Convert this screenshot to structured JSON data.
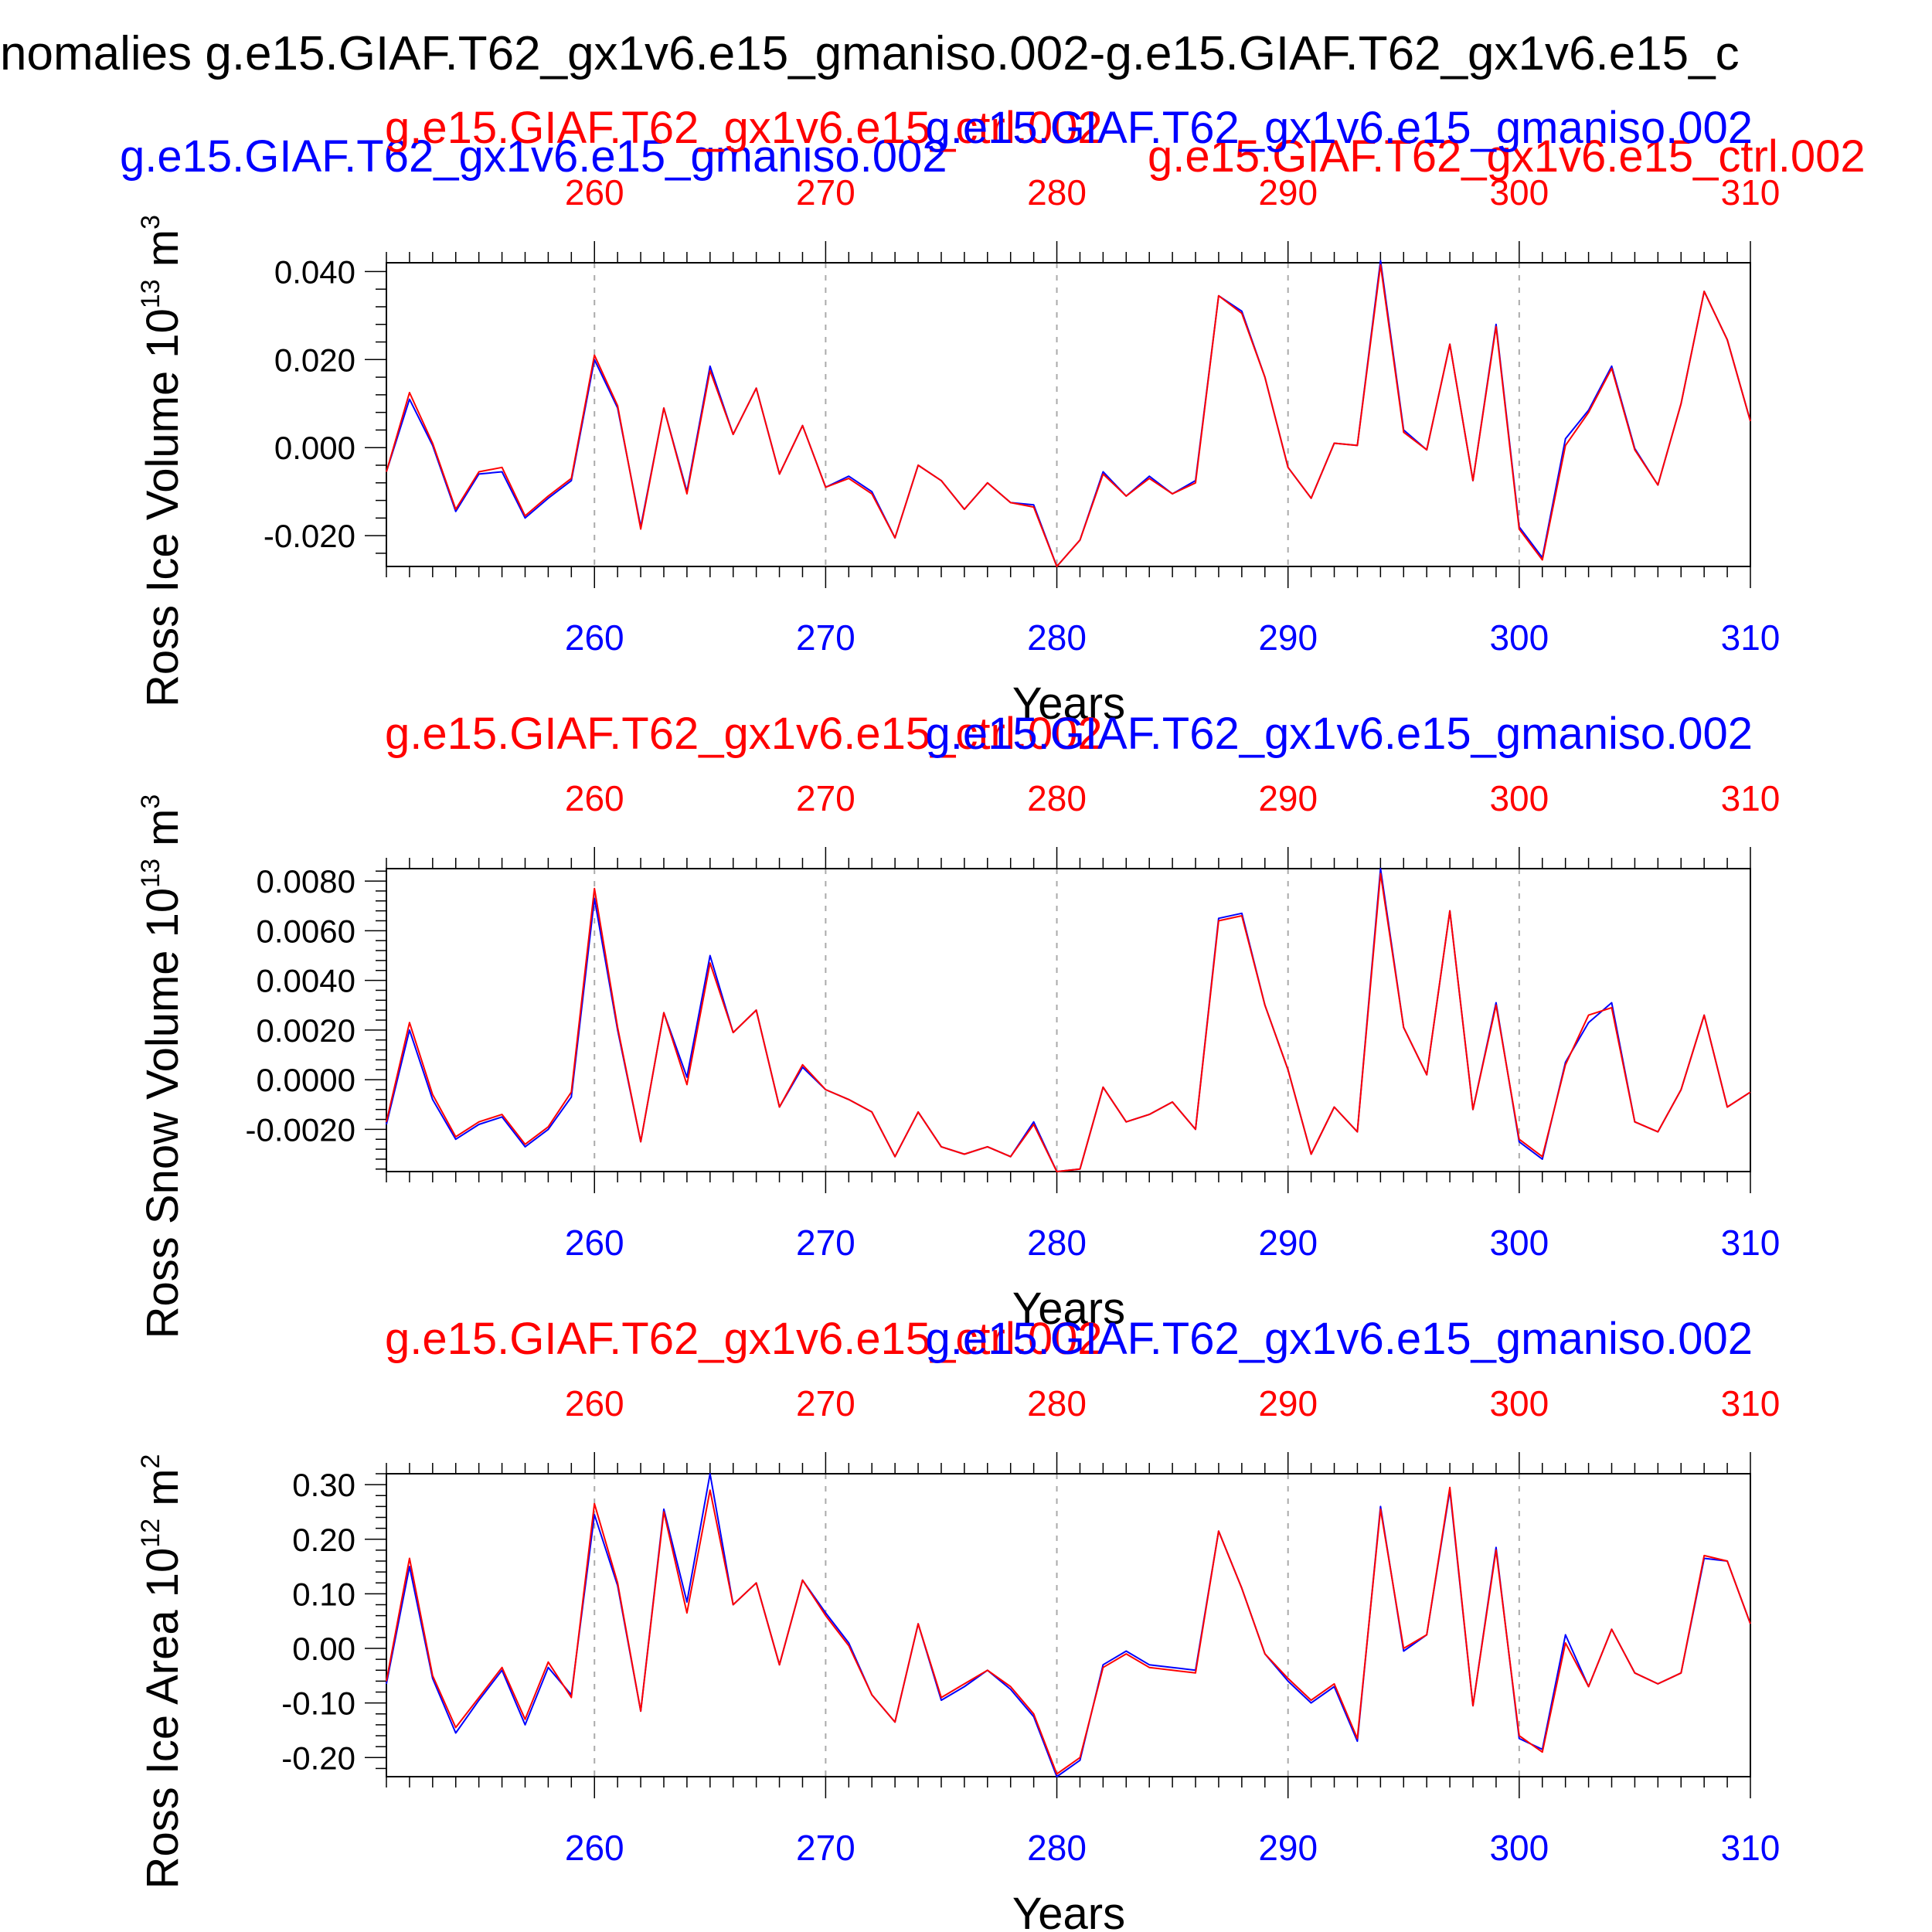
{
  "page_title": "nomalies g.e15.GIAF.T62_gx1v6.e15_gmaniso.002-g.e15.GIAF.T62_gx1v6.e15_c",
  "top_legend": {
    "blue": "g.e15.GIAF.T62_gx1v6.e15_gmaniso.002",
    "red": "g.e15.GIAF.T62_gx1v6.e15_ctrl.002"
  },
  "colors": {
    "blue": "#0000ff",
    "red": "#ff0000",
    "axis": "#000000",
    "grid": "#aaaaaa"
  },
  "chart_data": [
    {
      "type": "line",
      "ylabel_base": "Ross Ice Volume 10",
      "ylabel_exp1": "13",
      "ylabel_unit": " m",
      "ylabel_exp2": "3",
      "xlabel": "Years",
      "top_label_red": "g.e15.GIAF.T62_gx1v6.e15_ctrl.002",
      "top_label_blue": "g.e15.GIAF.T62_gx1v6.e15_gmaniso.002",
      "xlim": [
        251,
        310
      ],
      "ylim": [
        -0.027,
        0.042
      ],
      "x_ticks": [
        260,
        270,
        280,
        290,
        300,
        310
      ],
      "y_ticks": [
        -0.02,
        0.0,
        0.02,
        0.04
      ],
      "y_tick_labels": [
        "-0.020",
        "0.000",
        "0.020",
        "0.040"
      ],
      "x": [
        251,
        252,
        253,
        254,
        255,
        256,
        257,
        258,
        259,
        260,
        261,
        262,
        263,
        264,
        265,
        266,
        267,
        268,
        269,
        270,
        271,
        272,
        273,
        274,
        275,
        276,
        277,
        278,
        279,
        280,
        281,
        282,
        283,
        284,
        285,
        286,
        287,
        288,
        289,
        290,
        291,
        292,
        293,
        294,
        295,
        296,
        297,
        298,
        299,
        300,
        301,
        302,
        303,
        304,
        305,
        306,
        307,
        308,
        309,
        310
      ],
      "series": [
        {
          "name": "g.e15.GIAF.T62_gx1v6.e15_gmaniso.002",
          "color": "#0000ff",
          "values": [
            -0.0055,
            0.011,
            0.0005,
            -0.0145,
            -0.006,
            -0.0055,
            -0.016,
            -0.0115,
            -0.0075,
            0.02,
            0.009,
            -0.018,
            0.009,
            -0.01,
            0.0185,
            0.003,
            0.0135,
            -0.006,
            0.005,
            -0.009,
            -0.0065,
            -0.01,
            -0.0205,
            -0.004,
            -0.0075,
            -0.014,
            -0.008,
            -0.0125,
            -0.013,
            -0.027,
            -0.021,
            -0.0055,
            -0.011,
            -0.0065,
            -0.0105,
            -0.0075,
            0.0345,
            0.031,
            0.016,
            -0.0045,
            -0.0115,
            0.001,
            0.0005,
            0.0425,
            0.004,
            -0.0005,
            0.0235,
            -0.0075,
            0.028,
            -0.018,
            -0.025,
            0.002,
            0.0085,
            0.0185,
            -0.0002,
            -0.0085,
            0.01,
            0.0355,
            0.0245,
            0.006
          ]
        },
        {
          "name": "g.e15.GIAF.T62_gx1v6.e15_ctrl.002",
          "color": "#ff0000",
          "values": [
            -0.0055,
            0.0125,
            0.001,
            -0.014,
            -0.0055,
            -0.0045,
            -0.0155,
            -0.011,
            -0.007,
            0.021,
            0.0095,
            -0.0185,
            0.009,
            -0.0105,
            0.0175,
            0.003,
            0.0135,
            -0.006,
            0.005,
            -0.009,
            -0.007,
            -0.0105,
            -0.0205,
            -0.004,
            -0.0075,
            -0.014,
            -0.008,
            -0.0125,
            -0.0135,
            -0.027,
            -0.021,
            -0.006,
            -0.011,
            -0.007,
            -0.0105,
            -0.008,
            0.0345,
            0.0305,
            0.016,
            -0.0045,
            -0.0115,
            0.001,
            0.0005,
            0.0415,
            0.0035,
            -0.0005,
            0.0235,
            -0.0075,
            0.0275,
            -0.0185,
            -0.0255,
            0.0005,
            0.008,
            0.018,
            -0.0005,
            -0.0085,
            0.01,
            0.0355,
            0.0245,
            0.006
          ]
        }
      ]
    },
    {
      "type": "line",
      "ylabel_base": "Ross Snow Volume 10",
      "ylabel_exp1": "13",
      "ylabel_unit": " m",
      "ylabel_exp2": "3",
      "xlabel": "Years",
      "top_label_red": "g.e15.GIAF.T62_gx1v6.e15_ctrl.002",
      "top_label_blue": "g.e15.GIAF.T62_gx1v6.e15_gmaniso.002",
      "xlim": [
        251,
        310
      ],
      "ylim": [
        -0.0037,
        0.0085
      ],
      "x_ticks": [
        260,
        270,
        280,
        290,
        300,
        310
      ],
      "y_ticks": [
        -0.002,
        0.0,
        0.002,
        0.004,
        0.006,
        0.008
      ],
      "y_tick_labels": [
        "-0.0020",
        "0.0000",
        "0.0020",
        "0.0040",
        "0.0060",
        "0.0080"
      ],
      "x": [
        251,
        252,
        253,
        254,
        255,
        256,
        257,
        258,
        259,
        260,
        261,
        262,
        263,
        264,
        265,
        266,
        267,
        268,
        269,
        270,
        271,
        272,
        273,
        274,
        275,
        276,
        277,
        278,
        279,
        280,
        281,
        282,
        283,
        284,
        285,
        286,
        287,
        288,
        289,
        290,
        291,
        292,
        293,
        294,
        295,
        296,
        297,
        298,
        299,
        300,
        301,
        302,
        303,
        304,
        305,
        306,
        307,
        308,
        309,
        310
      ],
      "series": [
        {
          "name": "g.e15.GIAF.T62_gx1v6.e15_gmaniso.002",
          "color": "#0000ff",
          "values": [
            -0.0018,
            0.002,
            -0.0008,
            -0.0024,
            -0.0018,
            -0.0015,
            -0.0027,
            -0.002,
            -0.0007,
            0.0073,
            0.002,
            -0.0025,
            0.0027,
            0.0001,
            0.005,
            0.0019,
            0.0028,
            -0.0011,
            0.0005,
            -0.0004,
            -0.0008,
            -0.0013,
            -0.0031,
            -0.0013,
            -0.0027,
            -0.003,
            -0.0027,
            -0.0031,
            -0.0017,
            -0.0037,
            -0.0036,
            -0.0003,
            -0.0017,
            -0.0014,
            -0.0009,
            -0.002,
            0.0065,
            0.0067,
            0.003,
            0.0004,
            -0.003,
            -0.0011,
            -0.0021,
            0.0085,
            0.0021,
            0.0002,
            0.0068,
            -0.0012,
            0.0031,
            -0.0025,
            -0.0032,
            0.0007,
            0.0023,
            0.0031,
            -0.0017,
            -0.0021,
            -0.0004,
            0.0026,
            -0.0011,
            -0.0005
          ]
        },
        {
          "name": "g.e15.GIAF.T62_gx1v6.e15_ctrl.002",
          "color": "#ff0000",
          "values": [
            -0.0017,
            0.0023,
            -0.0006,
            -0.0023,
            -0.0017,
            -0.0014,
            -0.0026,
            -0.0019,
            -0.0005,
            0.0077,
            0.0021,
            -0.0025,
            0.0027,
            -0.0002,
            0.0047,
            0.0019,
            0.0028,
            -0.0011,
            0.0006,
            -0.0004,
            -0.0008,
            -0.0013,
            -0.0031,
            -0.0013,
            -0.0027,
            -0.003,
            -0.0027,
            -0.0031,
            -0.0018,
            -0.0037,
            -0.0036,
            -0.0003,
            -0.0017,
            -0.0014,
            -0.0009,
            -0.002,
            0.0064,
            0.0066,
            0.003,
            0.0004,
            -0.003,
            -0.0011,
            -0.0021,
            0.0083,
            0.0021,
            0.0002,
            0.0068,
            -0.0012,
            0.003,
            -0.0024,
            -0.0031,
            0.0006,
            0.0026,
            0.0029,
            -0.0017,
            -0.0021,
            -0.0004,
            0.0026,
            -0.0011,
            -0.0005
          ]
        }
      ]
    },
    {
      "type": "line",
      "ylabel_base": "Ross Ice Area 10",
      "ylabel_exp1": "12",
      "ylabel_unit": " m",
      "ylabel_exp2": "2",
      "xlabel": "Years",
      "top_label_red": "g.e15.GIAF.T62_gx1v6.e15_ctrl.002",
      "top_label_blue": "g.e15.GIAF.T62_gx1v6.e15_gmaniso.002",
      "xlim": [
        251,
        310
      ],
      "ylim": [
        -0.235,
        0.32
      ],
      "x_ticks": [
        260,
        270,
        280,
        290,
        300,
        310
      ],
      "y_ticks": [
        -0.2,
        -0.1,
        0.0,
        0.1,
        0.2,
        0.3
      ],
      "y_tick_labels": [
        "-0.20",
        "-0.10",
        "0.00",
        "0.10",
        "0.20",
        "0.30"
      ],
      "x": [
        251,
        252,
        253,
        254,
        255,
        256,
        257,
        258,
        259,
        260,
        261,
        262,
        263,
        264,
        265,
        266,
        267,
        268,
        269,
        270,
        271,
        272,
        273,
        274,
        275,
        276,
        277,
        278,
        279,
        280,
        281,
        282,
        283,
        284,
        285,
        286,
        287,
        288,
        289,
        290,
        291,
        292,
        293,
        294,
        295,
        296,
        297,
        298,
        299,
        300,
        301,
        302,
        303,
        304,
        305,
        306,
        307,
        308,
        309,
        310
      ],
      "series": [
        {
          "name": "g.e15.GIAF.T62_gx1v6.e15_gmaniso.002",
          "color": "#0000ff",
          "values": [
            -0.065,
            0.15,
            -0.055,
            -0.155,
            -0.095,
            -0.04,
            -0.14,
            -0.035,
            -0.085,
            0.245,
            0.115,
            -0.115,
            0.255,
            0.085,
            0.32,
            0.08,
            0.12,
            -0.03,
            0.125,
            0.065,
            0.01,
            -0.085,
            -0.135,
            0.045,
            -0.095,
            -0.07,
            -0.04,
            -0.075,
            -0.125,
            -0.235,
            -0.205,
            -0.03,
            -0.005,
            -0.03,
            -0.035,
            -0.04,
            0.215,
            0.11,
            -0.01,
            -0.06,
            -0.1,
            -0.07,
            -0.17,
            0.26,
            -0.005,
            0.025,
            0.29,
            -0.105,
            0.185,
            -0.165,
            -0.185,
            0.025,
            -0.07,
            0.035,
            -0.045,
            -0.065,
            -0.045,
            0.165,
            0.16,
            0.045
          ]
        },
        {
          "name": "g.e15.GIAF.T62_gx1v6.e15_ctrl.002",
          "color": "#ff0000",
          "values": [
            -0.06,
            0.165,
            -0.05,
            -0.145,
            -0.09,
            -0.035,
            -0.13,
            -0.025,
            -0.09,
            0.265,
            0.12,
            -0.115,
            0.25,
            0.065,
            0.29,
            0.08,
            0.12,
            -0.03,
            0.125,
            0.06,
            0.005,
            -0.085,
            -0.135,
            0.045,
            -0.09,
            -0.065,
            -0.04,
            -0.07,
            -0.12,
            -0.23,
            -0.2,
            -0.035,
            -0.01,
            -0.035,
            -0.04,
            -0.045,
            0.215,
            0.11,
            -0.01,
            -0.055,
            -0.095,
            -0.065,
            -0.165,
            0.255,
            0.0,
            0.025,
            0.295,
            -0.105,
            0.18,
            -0.16,
            -0.19,
            0.01,
            -0.07,
            0.035,
            -0.045,
            -0.065,
            -0.045,
            0.17,
            0.16,
            0.045
          ]
        }
      ]
    }
  ]
}
